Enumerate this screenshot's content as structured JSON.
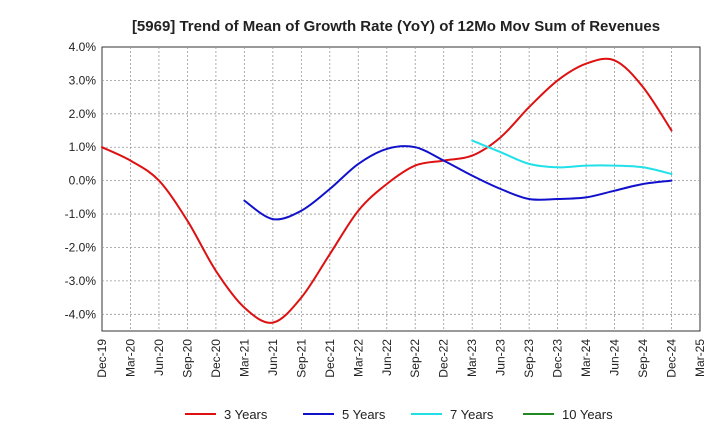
{
  "chart_data": {
    "type": "line",
    "title": "[5969]  Trend of Mean of Growth Rate (YoY) of 12Mo Mov Sum of Revenues",
    "xlabel": "",
    "ylabel": "",
    "ylim": [
      -4.5,
      4.0
    ],
    "y_ticks": [
      4.0,
      3.0,
      2.0,
      1.0,
      0.0,
      -1.0,
      -2.0,
      -3.0,
      -4.0
    ],
    "y_tick_labels": [
      "4.0%",
      "3.0%",
      "2.0%",
      "1.0%",
      "0.0%",
      "-1.0%",
      "-2.0%",
      "-3.0%",
      "-4.0%"
    ],
    "x_tick_labels": [
      "Dec-19",
      "Mar-20",
      "Jun-20",
      "Sep-20",
      "Dec-20",
      "Mar-21",
      "Jun-21",
      "Sep-21",
      "Dec-21",
      "Mar-22",
      "Jun-22",
      "Sep-22",
      "Dec-22",
      "Mar-23",
      "Jun-23",
      "Sep-23",
      "Dec-23",
      "Mar-24",
      "Jun-24",
      "Sep-24",
      "Dec-24",
      "Mar-25"
    ],
    "grid": true,
    "legend_position": "bottom",
    "series": [
      {
        "name": "3 Years",
        "color": "#dd1111",
        "x": [
          0,
          1,
          2,
          3,
          4,
          5,
          6,
          7,
          8,
          9,
          10,
          11,
          12,
          13,
          14,
          15,
          16,
          17,
          18,
          19,
          20
        ],
        "values": [
          1.0,
          0.6,
          0.0,
          -1.2,
          -2.7,
          -3.8,
          -4.25,
          -3.5,
          -2.2,
          -0.9,
          -0.1,
          0.45,
          0.6,
          0.75,
          1.3,
          2.2,
          3.0,
          3.5,
          3.6,
          2.8,
          1.5
        ]
      },
      {
        "name": "5 Years",
        "color": "#1111cc",
        "x": [
          5,
          6,
          7,
          8,
          9,
          10,
          11,
          12,
          13,
          14,
          15,
          16,
          17,
          18,
          19,
          20
        ],
        "values": [
          -0.6,
          -1.15,
          -0.9,
          -0.25,
          0.5,
          0.95,
          1.0,
          0.6,
          0.15,
          -0.25,
          -0.55,
          -0.55,
          -0.5,
          -0.3,
          -0.1,
          0.0
        ]
      },
      {
        "name": "7 Years",
        "color": "#22e0e8",
        "x": [
          13,
          14,
          15,
          16,
          17,
          18,
          19,
          20
        ],
        "values": [
          1.2,
          0.85,
          0.5,
          0.4,
          0.45,
          0.45,
          0.4,
          0.2
        ]
      },
      {
        "name": "10 Years",
        "color": "#228822",
        "x": [],
        "values": []
      }
    ]
  }
}
